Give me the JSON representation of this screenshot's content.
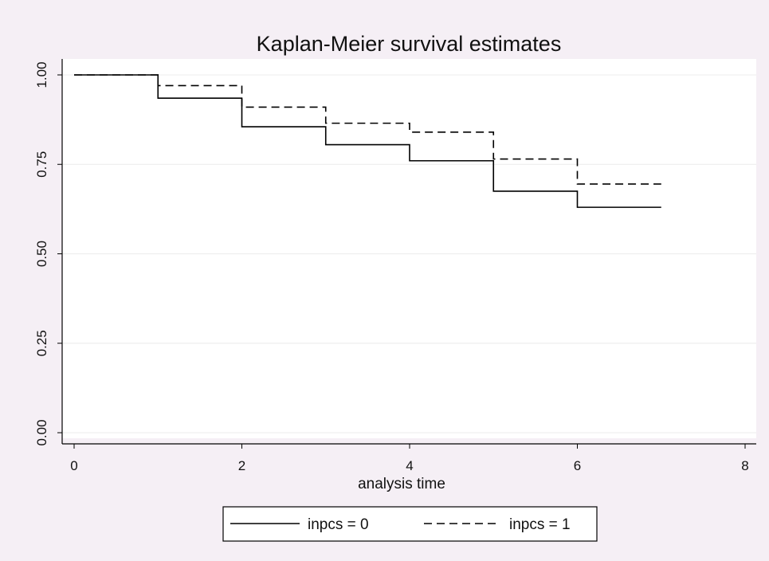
{
  "chart_data": {
    "type": "line",
    "step": true,
    "title": "Kaplan-Meier survival estimates",
    "xlabel": "analysis time",
    "ylabel": "",
    "xlim": [
      0,
      8
    ],
    "ylim": [
      0,
      1
    ],
    "xticks": [
      "0",
      "2",
      "4",
      "6",
      "8"
    ],
    "yticks": [
      "0.00",
      "0.25",
      "0.50",
      "0.75",
      "1.00"
    ],
    "grid": true,
    "legend_position": "bottom",
    "series": [
      {
        "name": "inpcs = 0",
        "line_style": "solid",
        "color": "#000000",
        "x": [
          0,
          1,
          2,
          3,
          4,
          5,
          6,
          7
        ],
        "y": [
          1.0,
          0.935,
          0.855,
          0.805,
          0.76,
          0.675,
          0.63,
          0.63
        ]
      },
      {
        "name": "inpcs = 1",
        "line_style": "dashed",
        "color": "#000000",
        "x": [
          0,
          1,
          2,
          3,
          4,
          5,
          6,
          7
        ],
        "y": [
          1.0,
          0.97,
          0.91,
          0.865,
          0.84,
          0.765,
          0.695,
          0.695
        ]
      }
    ]
  }
}
